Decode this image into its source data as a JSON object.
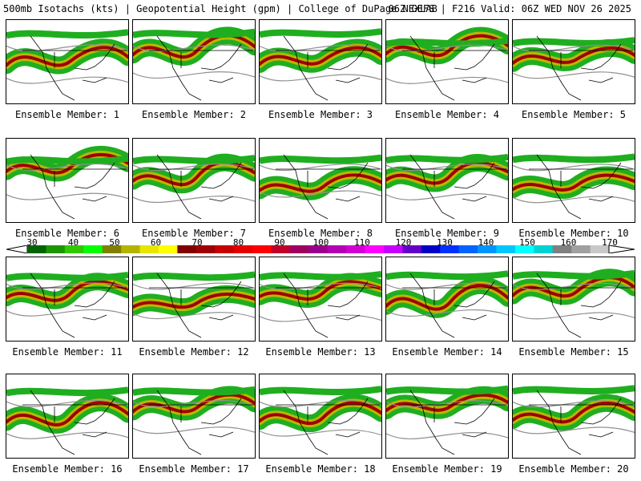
{
  "header": {
    "left": "500mb Isotachs (kts) | Geopotential Height (gpm) | College of DuPage NEXLAB",
    "right": "06Z GEFS | F216 Valid: 06Z WED NOV 26 2025"
  },
  "members": [
    {
      "label": "Ensemble Member: 1"
    },
    {
      "label": "Ensemble Member: 2"
    },
    {
      "label": "Ensemble Member: 3"
    },
    {
      "label": "Ensemble Member: 4"
    },
    {
      "label": "Ensemble Member: 5"
    },
    {
      "label": "Ensemble Member: 6"
    },
    {
      "label": "Ensemble Member: 7"
    },
    {
      "label": "Ensemble Member: 8"
    },
    {
      "label": "Ensemble Member: 9"
    },
    {
      "label": "Ensemble Member: 10"
    },
    {
      "label": "Ensemble Member: 11"
    },
    {
      "label": "Ensemble Member: 12"
    },
    {
      "label": "Ensemble Member: 13"
    },
    {
      "label": "Ensemble Member: 14"
    },
    {
      "label": "Ensemble Member: 15"
    },
    {
      "label": "Ensemble Member: 16"
    },
    {
      "label": "Ensemble Member: 17"
    },
    {
      "label": "Ensemble Member: 18"
    },
    {
      "label": "Ensemble Member: 19"
    },
    {
      "label": "Ensemble Member: 20"
    }
  ],
  "colorbar": {
    "ticks": [
      "30",
      "40",
      "50",
      "60",
      "70",
      "80",
      "90",
      "100",
      "110",
      "120",
      "130",
      "140",
      "150",
      "160",
      "170"
    ],
    "colors": [
      "#006400",
      "#1e9600",
      "#32c800",
      "#00ff00",
      "#808000",
      "#b4b400",
      "#e6e600",
      "#ffff00",
      "#800000",
      "#a00000",
      "#c80000",
      "#e60000",
      "#ff0000",
      "#c0002a",
      "#a00060",
      "#9b008c",
      "#b400b4",
      "#d200d2",
      "#ff00ff",
      "#c800ff",
      "#6400c8",
      "#0000c8",
      "#0032ff",
      "#0064ff",
      "#0096ff",
      "#00c8ff",
      "#00ffff",
      "#00d2d2",
      "#808080",
      "#a0a0a0",
      "#c8c8c8"
    ]
  },
  "map_colors": {
    "jet_outer": "#1fae1f",
    "jet_mid": "#b8b800",
    "jet_core": "#a00000",
    "height": "#909090",
    "border": "#000000"
  }
}
